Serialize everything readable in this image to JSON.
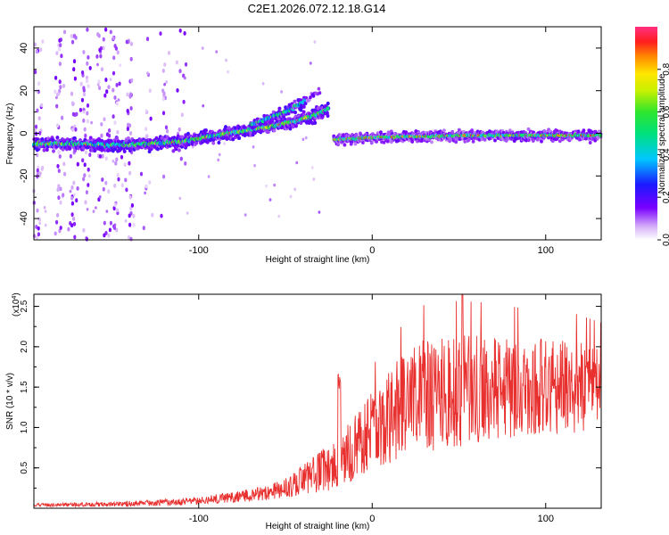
{
  "title": "C2E1.2026.072.12.18.G14",
  "chart_data": [
    {
      "type": "heatmap",
      "name": "spectrogram",
      "xlabel": "Height of straight line (km)",
      "ylabel": "Frequency (Hz)",
      "xlim": [
        -195,
        132
      ],
      "ylim": [
        -50,
        50
      ],
      "xticks": [
        -100,
        0,
        100
      ],
      "yticks": [
        -40,
        -20,
        0,
        20,
        40
      ],
      "colorbar": {
        "label": "Normalized spectral amplitude",
        "range": [
          0,
          1
        ],
        "ticks": [
          0.0,
          0.2,
          0.4,
          0.6,
          0.8
        ]
      },
      "track": {
        "lower_branch": {
          "x": [
            -195,
            -170,
            -150,
            -130,
            -110,
            -90,
            -75,
            -60,
            -45,
            -35,
            -28,
            -25
          ],
          "y": [
            -5,
            -5,
            -5.5,
            -5,
            -4,
            -1,
            1,
            3,
            5.5,
            8,
            10,
            12
          ]
        },
        "upper_branch": {
          "x": [
            -70,
            -60,
            -50,
            -43,
            -38
          ],
          "y": [
            4,
            7,
            10,
            13,
            16
          ]
        },
        "gap_x": [
          -26,
          -22
        ],
        "plateau": {
          "x": [
            -22,
            0,
            50,
            132
          ],
          "y": [
            -3,
            -2,
            -1,
            -1
          ]
        }
      }
    },
    {
      "type": "line",
      "name": "snr",
      "xlabel": "Height of straight line (km)",
      "ylabel": "SNR (10 * v/v)",
      "multiplier_label": "(x10",
      "multiplier_exp": "4",
      "xlim": [
        -195,
        132
      ],
      "ylim": [
        0,
        2.65
      ],
      "xticks": [
        -100,
        0,
        100
      ],
      "yticks": [
        0.5,
        1.0,
        1.5,
        2.0,
        2.5
      ],
      "ytick_labels": [
        "0.5",
        "1.0",
        "1.5",
        "2.0",
        "2.5"
      ],
      "trend": {
        "x": [
          -195,
          -150,
          -100,
          -70,
          -50,
          -30,
          -20,
          -10,
          0,
          10,
          30,
          50,
          70,
          90,
          110,
          132
        ],
        "mean": [
          0.04,
          0.05,
          0.09,
          0.16,
          0.25,
          0.45,
          0.55,
          0.75,
          0.95,
          1.15,
          1.4,
          1.45,
          1.5,
          1.5,
          1.5,
          1.5
        ],
        "spread": [
          0.02,
          0.03,
          0.05,
          0.08,
          0.12,
          0.25,
          0.35,
          0.4,
          0.5,
          0.6,
          0.7,
          0.7,
          0.65,
          0.6,
          0.6,
          0.5
        ]
      },
      "peak_max": 2.65,
      "color": "#e8302f"
    }
  ]
}
